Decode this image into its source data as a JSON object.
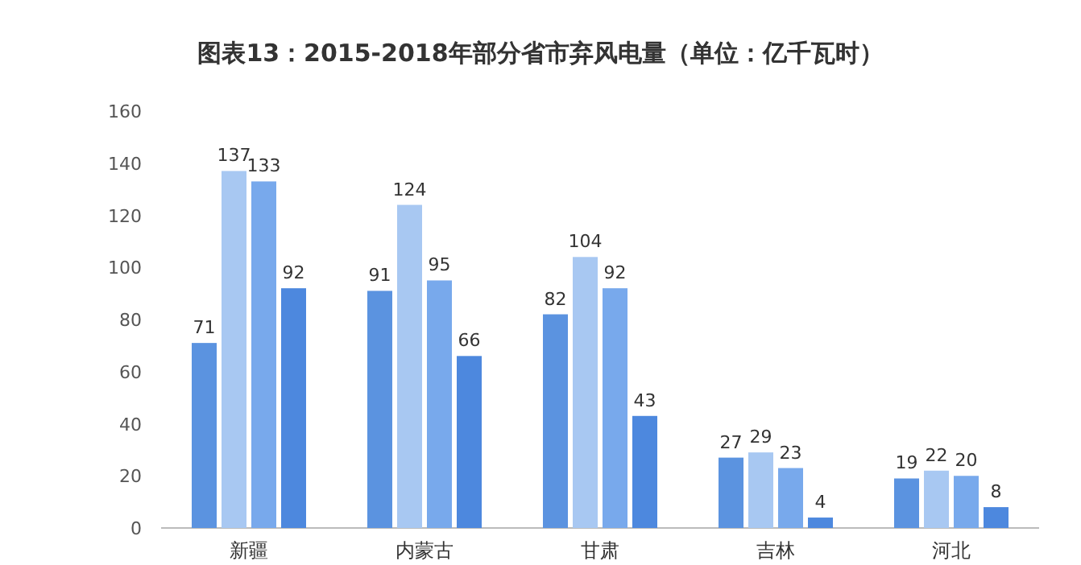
{
  "chart_data": {
    "type": "bar",
    "title": "图表13：2015-2018年部分省市弃风电量（单位：亿千瓦时）",
    "categories": [
      "新疆",
      "内蒙古",
      "甘肃",
      "吉林",
      "河北"
    ],
    "series": [
      {
        "color": "#5b93e0",
        "values": [
          71,
          91,
          82,
          27,
          19
        ]
      },
      {
        "color": "#a8c8f2",
        "values": [
          137,
          124,
          104,
          29,
          22
        ]
      },
      {
        "color": "#78a9ec",
        "values": [
          133,
          95,
          92,
          23,
          20
        ]
      },
      {
        "color": "#4d88de",
        "values": [
          92,
          66,
          43,
          4,
          8
        ]
      }
    ],
    "ylim": [
      0,
      160
    ],
    "yticks": [
      0,
      20,
      40,
      60,
      80,
      100,
      120,
      140,
      160
    ],
    "data_labels": true
  }
}
